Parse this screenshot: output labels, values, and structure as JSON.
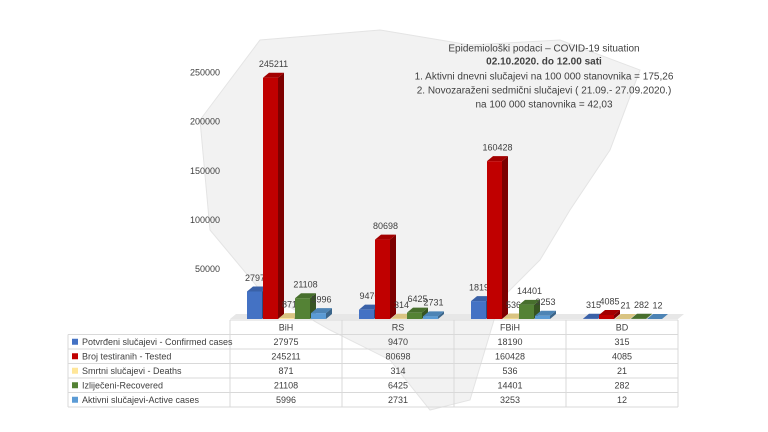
{
  "chart_data": {
    "type": "bar3d",
    "title": "Epidemiološki podaci – COVID-19 situation",
    "subtitle": "02.10.2020. do 12.00 sati",
    "annotations": [
      "1. Aktivni dnevni slučajevi na 100 000 stanovnika = 175,26",
      "2. Novozaraženi sedmični slučajevi ( 21.09.- 27.09.2020.)",
      "na 100 000 stanovnika = 42,03"
    ],
    "categories": [
      "BiH",
      "RS",
      "FBiH",
      "BD"
    ],
    "series": [
      {
        "name": "Potvrđeni slučajevi - Confirmed cases",
        "color": "#4472c4",
        "values": [
          27975,
          9470,
          18190,
          315
        ]
      },
      {
        "name": "Broj testiranih - Tested",
        "color": "#c00000",
        "values": [
          245211,
          80698,
          160428,
          4085
        ]
      },
      {
        "name": "Smrtni slučajevi - Deaths",
        "color": "#ffe699",
        "values": [
          871,
          314,
          536,
          21
        ]
      },
      {
        "name": "Izliječeni-Recovered",
        "color": "#548235",
        "values": [
          21108,
          6425,
          14401,
          282
        ]
      },
      {
        "name": "Aktivni slučajevi-Active cases",
        "color": "#5b9bd5",
        "values": [
          5996,
          2731,
          3253,
          12
        ]
      }
    ],
    "ylim": [
      0,
      250000
    ],
    "yticks": [
      50000,
      100000,
      150000,
      200000,
      250000
    ],
    "data_table": true
  }
}
